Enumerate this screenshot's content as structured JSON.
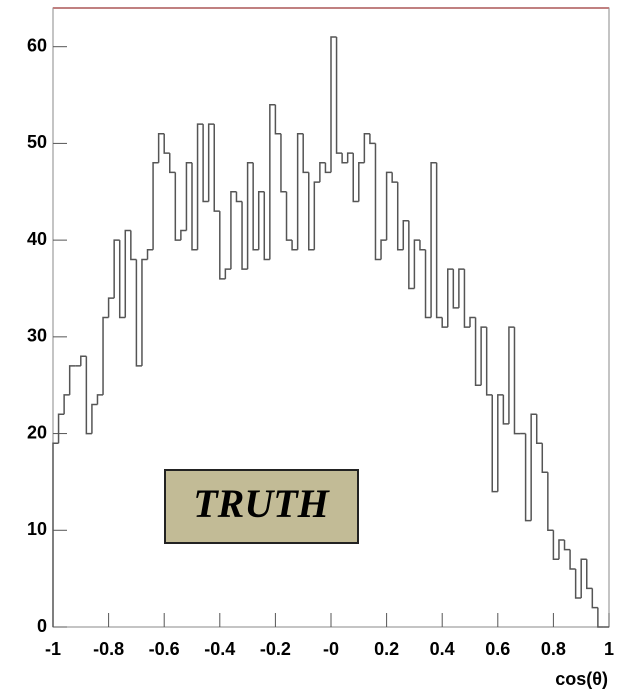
{
  "chart_data": {
    "type": "histogram",
    "bins": [
      -1,
      -0.98,
      -0.96,
      -0.94,
      -0.92,
      -0.9,
      -0.88,
      -0.86,
      -0.84,
      -0.82,
      -0.8,
      -0.78,
      -0.76,
      -0.74,
      -0.72,
      -0.7,
      -0.68,
      -0.66,
      -0.64,
      -0.62,
      -0.6,
      -0.58,
      -0.56,
      -0.54,
      -0.52,
      -0.5,
      -0.48,
      -0.46,
      -0.44,
      -0.42,
      -0.4,
      -0.38,
      -0.36,
      -0.34,
      -0.32,
      -0.3,
      -0.28,
      -0.26,
      -0.24,
      -0.22,
      -0.2,
      -0.18,
      -0.16,
      -0.14,
      -0.12,
      -0.1,
      -0.08,
      -0.06,
      -0.04,
      -0.02,
      0,
      0.02,
      0.04,
      0.06,
      0.08,
      0.1,
      0.12,
      0.14,
      0.16,
      0.18,
      0.2,
      0.22,
      0.24,
      0.26,
      0.28,
      0.3,
      0.32,
      0.34,
      0.36,
      0.38,
      0.4,
      0.42,
      0.44,
      0.46,
      0.48,
      0.5,
      0.52,
      0.54,
      0.56,
      0.58,
      0.6,
      0.62,
      0.64,
      0.66,
      0.68,
      0.7,
      0.72,
      0.74,
      0.76,
      0.78,
      0.8,
      0.82,
      0.84,
      0.86,
      0.88,
      0.9,
      0.92,
      0.94,
      0.96,
      0.98,
      1
    ],
    "values": [
      19,
      22,
      24,
      27,
      27,
      28,
      20,
      23,
      24,
      32,
      34,
      40,
      32,
      41,
      38,
      27,
      38,
      39,
      48,
      51,
      49,
      47,
      40,
      41,
      48,
      39,
      52,
      44,
      52,
      43,
      36,
      37,
      45,
      44,
      37,
      48,
      39,
      45,
      38,
      54,
      51,
      45,
      40,
      39,
      51,
      47,
      39,
      46,
      48,
      47,
      61,
      49,
      48,
      49,
      44,
      48,
      51,
      50,
      38,
      40,
      47,
      46,
      39,
      42,
      35,
      40,
      39,
      32,
      48,
      32,
      31,
      37,
      33,
      37,
      31,
      32,
      25,
      31,
      24,
      14,
      24,
      21,
      31,
      20,
      20,
      11,
      22,
      19,
      16,
      10,
      7,
      9,
      8,
      6,
      3,
      7,
      4,
      2,
      0,
      0
    ],
    "color": "#555555",
    "xlim": [
      -1,
      1
    ],
    "ylim": [
      0,
      64
    ],
    "xticks": [
      -1,
      -0.8,
      -0.6,
      -0.4,
      -0.2,
      {
        "value": 0,
        "label": "-0"
      },
      0.2,
      0.4,
      0.6,
      0.8,
      1
    ],
    "yticks": [
      0,
      10,
      20,
      30,
      40,
      50,
      60
    ],
    "x_label": "cos(θ)",
    "annotation": "TRUTH"
  }
}
